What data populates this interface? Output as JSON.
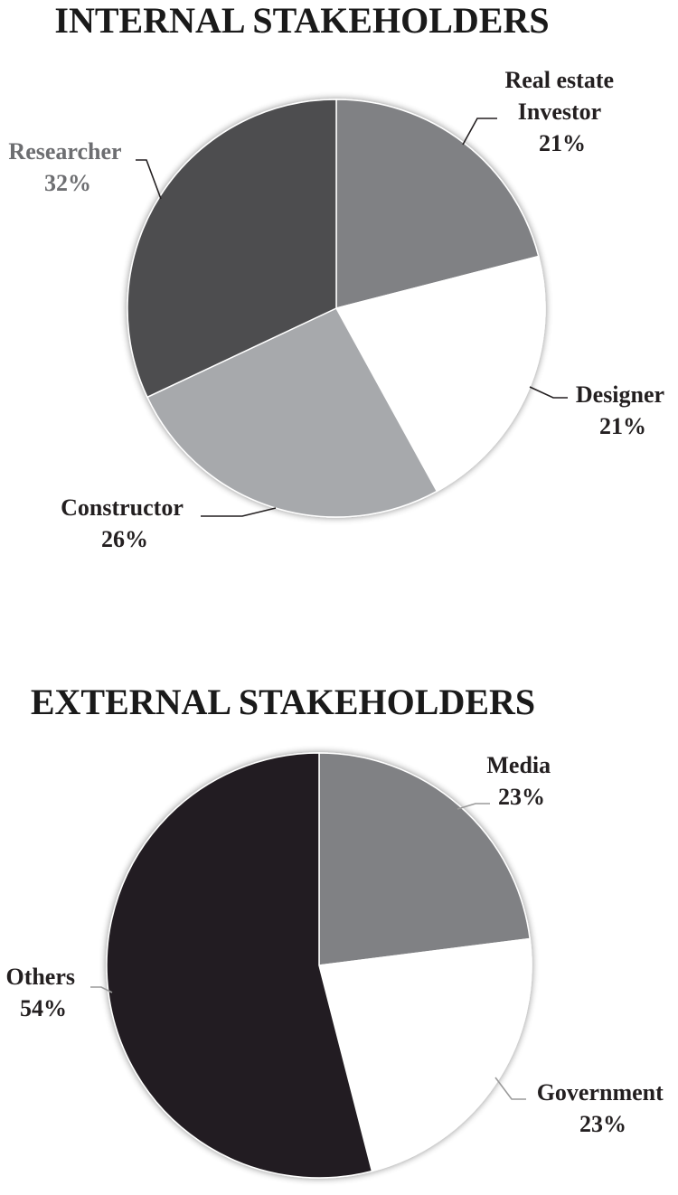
{
  "chart_data": [
    {
      "type": "pie",
      "title": "INTERNAL STAKEHOLDERS",
      "slices": [
        {
          "label_lines": [
            "Real estate",
            "Investor"
          ],
          "value": 21,
          "value_label": "21%",
          "color": "#808184"
        },
        {
          "label_lines": [
            "Designer"
          ],
          "value": 21,
          "value_label": "21%",
          "color": "#ffffff"
        },
        {
          "label_lines": [
            "Constructor"
          ],
          "value": 26,
          "value_label": "26%",
          "color": "#a7a9ac"
        },
        {
          "label_lines": [
            "Researcher"
          ],
          "value": 32,
          "value_label": "32%",
          "color": "#4d4d4f"
        }
      ]
    },
    {
      "type": "pie",
      "title": "EXTERNAL STAKEHOLDERS",
      "slices": [
        {
          "label_lines": [
            "Media"
          ],
          "value": 23,
          "value_label": "23%",
          "color": "#808184"
        },
        {
          "label_lines": [
            "Government"
          ],
          "value": 23,
          "value_label": "23%",
          "color": "#ffffff"
        },
        {
          "label_lines": [
            "Others"
          ],
          "value": 54,
          "value_label": "54%",
          "color": "#231f20"
        }
      ]
    }
  ]
}
